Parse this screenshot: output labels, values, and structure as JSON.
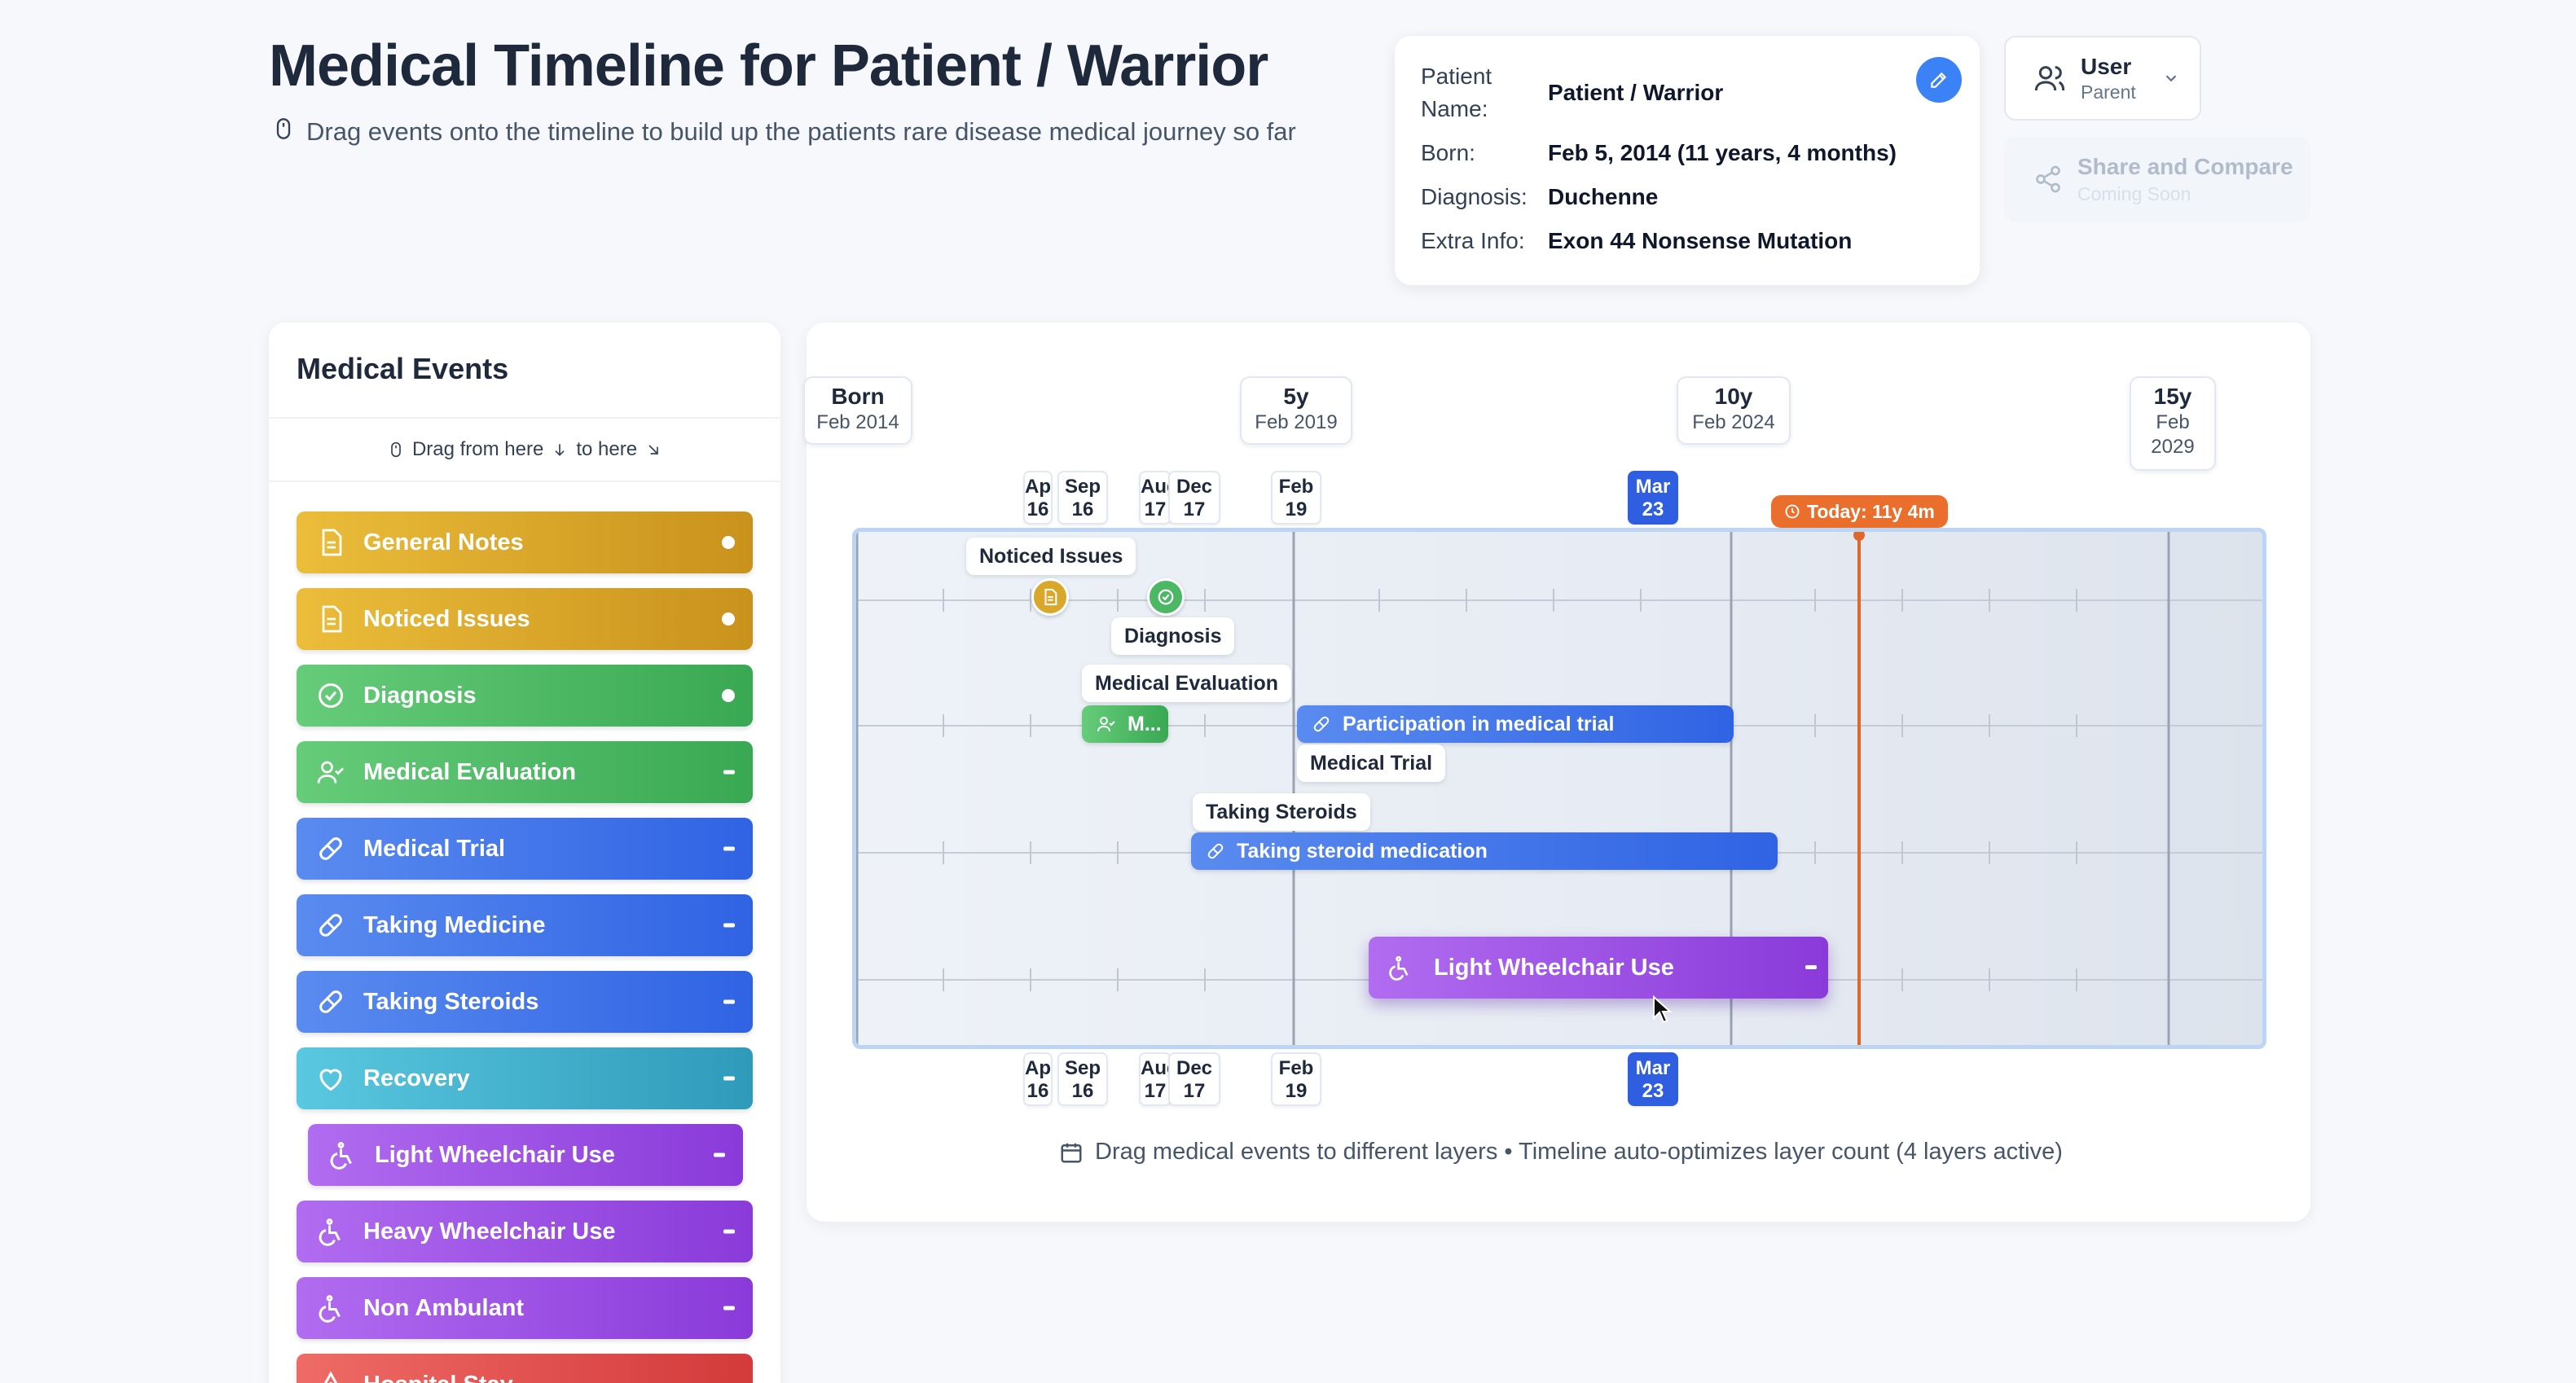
{
  "header": {
    "title": "Medical Timeline for Patient / Warrior",
    "subtitle": "Drag events onto the timeline to build up the patients rare disease medical journey so far"
  },
  "patient": {
    "name_label": "Patient Name:",
    "name_label_line1": "Patient",
    "name_label_line2": "Name:",
    "name": "Patient / Warrior",
    "born_label": "Born:",
    "born": "Feb 5, 2014 (11 years, 4 months)",
    "diagnosis_label": "Diagnosis:",
    "diagnosis": "Duchenne",
    "extra_label": "Extra Info:",
    "extra": "Exon 44 Nonsense Mutation"
  },
  "user": {
    "name": "User",
    "role": "Parent"
  },
  "share": {
    "title": "Share and Compare",
    "subtitle": "Coming Soon"
  },
  "events_panel": {
    "title": "Medical Events",
    "hint_from": "Drag from here",
    "hint_to": "to here",
    "items": [
      {
        "label": "General Notes",
        "icon": "note-icon",
        "kind": "point"
      },
      {
        "label": "Noticed Issues",
        "icon": "note-icon",
        "kind": "point"
      },
      {
        "label": "Diagnosis",
        "icon": "check-circle-icon",
        "kind": "point"
      },
      {
        "label": "Medical Evaluation",
        "icon": "user-check-icon",
        "kind": "range"
      },
      {
        "label": "Medical Trial",
        "icon": "pill-icon",
        "kind": "range"
      },
      {
        "label": "Taking Medicine",
        "icon": "pill-icon",
        "kind": "range"
      },
      {
        "label": "Taking Steroids",
        "icon": "pill-icon",
        "kind": "range"
      },
      {
        "label": "Recovery",
        "icon": "heart-icon",
        "kind": "range"
      },
      {
        "label": "Light Wheelchair Use",
        "icon": "wheelchair-icon",
        "kind": "range"
      },
      {
        "label": "Heavy Wheelchair Use",
        "icon": "wheelchair-icon",
        "kind": "range"
      },
      {
        "label": "Non Ambulant",
        "icon": "wheelchair-icon",
        "kind": "range"
      },
      {
        "label": "Hospital Stay",
        "icon": "alert-icon",
        "kind": "range"
      }
    ]
  },
  "timeline": {
    "milestones": [
      {
        "title": "Born",
        "date": "Feb 2014"
      },
      {
        "title": "5y",
        "date": "Feb 2019"
      },
      {
        "title": "10y",
        "date": "Feb 2024"
      },
      {
        "title": "15y",
        "date_line1": "Feb",
        "date_line2": "2029"
      }
    ],
    "date_chips": [
      {
        "month": "Apr",
        "day": "16"
      },
      {
        "month": "Sep",
        "day": "16"
      },
      {
        "month": "Aug",
        "day": "17"
      },
      {
        "month": "Dec",
        "day": "17"
      },
      {
        "month": "Feb",
        "day": "19"
      },
      {
        "month": "Mar",
        "day": "23",
        "active": true
      }
    ],
    "today_label": "Today: 11y 4m",
    "events": {
      "noticed_issues": "Noticed Issues",
      "diagnosis": "Diagnosis",
      "medical_evaluation": "Medical Evaluation",
      "medical_evaluation_short": "M...",
      "medical_trial_bar": "Participation in medical trial",
      "medical_trial_label": "Medical Trial",
      "steroids_label": "Taking Steroids",
      "steroids_bar": "Taking steroid medication",
      "wheelchair_bar": "Light Wheelchair Use"
    },
    "footer": "Drag medical events to different layers • Timeline auto-optimizes layer count (4 layers active)"
  },
  "colors": {
    "accent_blue": "#2f5fe0",
    "today_orange": "#ea6f2d",
    "yellow": "#d9a72a",
    "green": "#4cb865",
    "purple": "#9b4fe6"
  }
}
